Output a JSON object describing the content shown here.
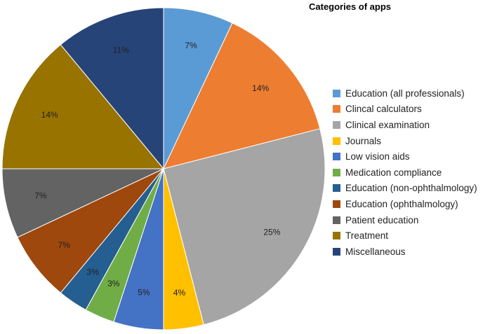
{
  "chart_data": {
    "type": "pie",
    "title": "Categories of apps",
    "legend_position": "right",
    "start": "top, clockwise",
    "slices": [
      {
        "name": "Education (all professionals)",
        "value": 7,
        "label": "7%",
        "color": "#5B9BD5"
      },
      {
        "name": "Clincal calculators",
        "value": 14,
        "label": "14%",
        "color": "#ED7D31"
      },
      {
        "name": "Clinical examination",
        "value": 25,
        "label": "25%",
        "color": "#A5A5A5"
      },
      {
        "name": "Journals",
        "value": 4,
        "label": "4%",
        "color": "#FFC000"
      },
      {
        "name": "Low vision aids",
        "value": 5,
        "label": "5%",
        "color": "#4472C4"
      },
      {
        "name": "Medication compliance",
        "value": 3,
        "label": "3%",
        "color": "#70AD47"
      },
      {
        "name": "Education (non-ophthalmology)",
        "value": 3,
        "label": "3%",
        "color": "#255E91"
      },
      {
        "name": "Education (ophthalmology)",
        "value": 7,
        "label": "7%",
        "color": "#9E480E"
      },
      {
        "name": "Patient education",
        "value": 7,
        "label": "7%",
        "color": "#636363"
      },
      {
        "name": "Treatment",
        "value": 14,
        "label": "14%",
        "color": "#997300"
      },
      {
        "name": "Miscellaneous",
        "value": 11,
        "label": "11%",
        "color": "#264478"
      }
    ]
  }
}
